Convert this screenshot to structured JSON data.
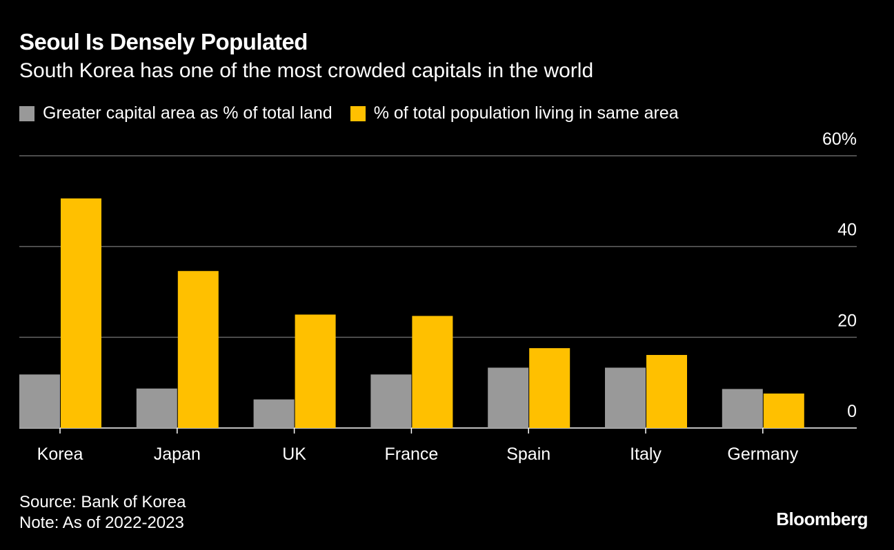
{
  "chart_data": {
    "type": "bar",
    "title": "Seoul Is Densely Populated",
    "subtitle": "South Korea has one of the most crowded capitals in the world",
    "categories": [
      "Korea",
      "Japan",
      "UK",
      "France",
      "Spain",
      "Italy",
      "Germany"
    ],
    "series": [
      {
        "name": "Greater capital area as % of total land",
        "color": "#999999",
        "values": [
          11.8,
          8.7,
          6.3,
          11.8,
          13.3,
          13.3,
          8.6
        ]
      },
      {
        "name": "% of total population living in same area",
        "color": "#FFC000",
        "values": [
          50.6,
          34.6,
          25.0,
          24.7,
          17.6,
          16.1,
          7.6
        ]
      }
    ],
    "ylim": [
      0,
      60
    ],
    "yticks": [
      0,
      20,
      40,
      60
    ],
    "ytick_labels": [
      "0",
      "20",
      "40",
      "60%"
    ],
    "y_axis_side": "right",
    "grid": true,
    "legend": "top-left",
    "source": "Source: Bank of Korea",
    "note": "Note: As of 2022-2023",
    "brand": "Bloomberg"
  }
}
